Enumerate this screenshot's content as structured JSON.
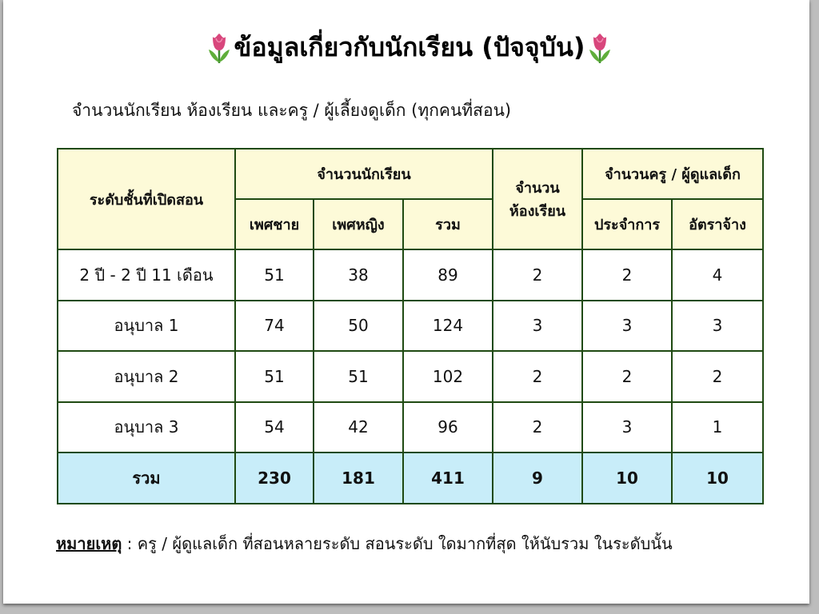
{
  "title": "ข้อมูลเกี่ยวกับนักเรียน (ปัจจุบัน)",
  "title_icon": "tulip-icon",
  "subtitle": "จำนวนนักเรียน ห้องเรียน และครู / ผู้เลี้ยงดูเด็ก (ทุกคนที่สอน)",
  "table": {
    "headers": {
      "level": "ระดับชั้นที่เปิดสอน",
      "students": "จำนวนนักเรียน",
      "male": "เพศชาย",
      "female": "เพศหญิง",
      "total": "รวม",
      "rooms_1": "จำนวน",
      "rooms_2": "ห้องเรียน",
      "teachers": "จำนวนครู / ผู้ดูแลเด็ก",
      "permanent": "ประจำการ",
      "contract": "อัตราจ้าง"
    },
    "rows": [
      [
        "2 ปี - 2 ปี 11 เดือน",
        "51",
        "38",
        "89",
        "2",
        "2",
        "4"
      ],
      [
        "อนุบาล 1",
        "74",
        "50",
        "124",
        "3",
        "3",
        "3"
      ],
      [
        "อนุบาล 2",
        "51",
        "51",
        "102",
        "2",
        "2",
        "2"
      ],
      [
        "อนุบาล 3",
        "54",
        "42",
        "96",
        "2",
        "3",
        "1"
      ]
    ],
    "total": [
      "รวม",
      "230",
      "181",
      "411",
      "9",
      "10",
      "10"
    ],
    "colors": {
      "header_bg": "#fdfad8",
      "total_bg": "#c8edf9",
      "border": "#1f4a12"
    }
  },
  "note": {
    "label": "หมายเหตุ",
    "text": " : ครู / ผู้ดูแลเด็ก ที่สอนหลายระดับ สอนระดับ ใดมากที่สุด ให้นับรวม ในระดับนั้น"
  }
}
